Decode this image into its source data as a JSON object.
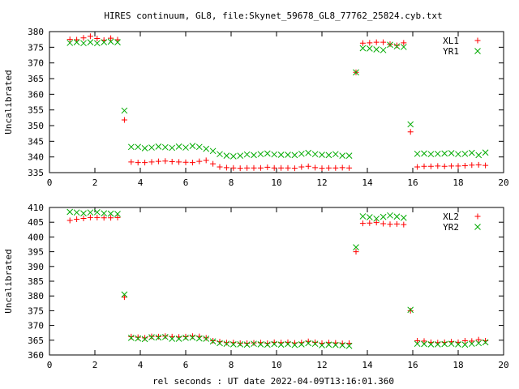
{
  "title": "HIRES continuum, GL8, file:Skynet_59678_GL8_77762_25824.cyb.txt",
  "xlabel": "rel seconds : UT date 2022-04-09T13:16:01.360",
  "colors": {
    "series1": "#ff0000",
    "series2": "#00aa00",
    "axes": "#000000"
  },
  "chart_data": [
    {
      "type": "scatter",
      "title": "HIRES continuum, GL8, file:Skynet_59678_GL8_77762_25824.cyb.txt",
      "xlabel": "",
      "ylabel": "Uncalibrated",
      "xlim": [
        0,
        20
      ],
      "ylim": [
        335,
        380
      ],
      "xticks": [
        "0",
        "2",
        "4",
        "6",
        "8",
        "10",
        "12",
        "14",
        "16",
        "18",
        "20"
      ],
      "yticks": [
        "335",
        "340",
        "345",
        "350",
        "355",
        "360",
        "365",
        "370",
        "375",
        "380"
      ],
      "grid": false,
      "legend": "top-right",
      "series": [
        {
          "name": "XL1",
          "marker": "plus",
          "color": "#ff0000",
          "x": [
            0.9,
            1.2,
            1.5,
            1.8,
            2.1,
            2.4,
            2.7,
            3.0,
            3.3,
            3.6,
            3.9,
            4.2,
            4.5,
            4.8,
            5.1,
            5.4,
            5.7,
            6.0,
            6.3,
            6.6,
            6.9,
            7.2,
            7.5,
            7.8,
            8.1,
            8.4,
            8.7,
            9.0,
            9.3,
            9.6,
            9.9,
            10.2,
            10.5,
            10.8,
            11.1,
            11.4,
            11.7,
            12.0,
            12.3,
            12.6,
            12.9,
            13.2,
            13.5,
            13.8,
            14.1,
            14.4,
            14.7,
            15.0,
            15.3,
            15.6,
            15.9,
            16.2,
            16.5,
            16.8,
            17.1,
            17.4,
            17.7,
            18.0,
            18.3,
            18.6,
            18.9,
            19.2
          ],
          "y": [
            377.5,
            377.4,
            378.0,
            378.5,
            377.8,
            377.3,
            377.9,
            377.4,
            351.8,
            338.4,
            338.2,
            338.2,
            338.4,
            338.6,
            338.7,
            338.5,
            338.4,
            338.3,
            338.2,
            338.6,
            338.9,
            337.8,
            336.8,
            336.6,
            336.5,
            336.4,
            336.5,
            336.5,
            336.5,
            336.7,
            336.5,
            336.5,
            336.5,
            336.4,
            336.8,
            337.0,
            336.6,
            336.4,
            336.5,
            336.5,
            336.6,
            336.5,
            367.0,
            376.3,
            376.4,
            376.6,
            376.6,
            376.0,
            375.6,
            376.4,
            348.0,
            336.8,
            337.0,
            337.0,
            337.1,
            337.0,
            337.1,
            337.1,
            337.2,
            337.4,
            337.5,
            337.3
          ]
        },
        {
          "name": "YR1",
          "marker": "cross",
          "color": "#00aa00",
          "x": [
            0.9,
            1.2,
            1.5,
            1.8,
            2.1,
            2.4,
            2.7,
            3.0,
            3.3,
            3.6,
            3.9,
            4.2,
            4.5,
            4.8,
            5.1,
            5.4,
            5.7,
            6.0,
            6.3,
            6.6,
            6.9,
            7.2,
            7.5,
            7.8,
            8.1,
            8.4,
            8.7,
            9.0,
            9.3,
            9.6,
            9.9,
            10.2,
            10.5,
            10.8,
            11.1,
            11.4,
            11.7,
            12.0,
            12.3,
            12.6,
            12.9,
            13.2,
            13.5,
            13.8,
            14.1,
            14.4,
            14.7,
            15.0,
            15.3,
            15.6,
            15.9,
            16.2,
            16.5,
            16.8,
            17.1,
            17.4,
            17.7,
            18.0,
            18.3,
            18.6,
            18.9,
            19.2
          ],
          "y": [
            376.4,
            376.6,
            376.3,
            376.6,
            376.3,
            376.6,
            376.8,
            376.6,
            354.8,
            343.2,
            343.2,
            342.8,
            343.0,
            343.3,
            343.1,
            342.9,
            343.3,
            343.0,
            343.5,
            343.2,
            342.6,
            341.9,
            340.9,
            340.4,
            340.2,
            340.4,
            340.8,
            340.6,
            340.9,
            341.1,
            340.8,
            340.7,
            340.7,
            340.6,
            341.0,
            341.3,
            340.9,
            340.7,
            340.6,
            340.9,
            340.4,
            340.4,
            367.0,
            374.7,
            374.6,
            374.3,
            374.1,
            375.8,
            375.3,
            375.1,
            350.4,
            341.0,
            341.1,
            340.9,
            341.0,
            341.1,
            341.2,
            340.9,
            341.0,
            341.3,
            340.6,
            341.4
          ]
        }
      ]
    },
    {
      "type": "scatter",
      "title": "",
      "xlabel": "rel seconds : UT date 2022-04-09T13:16:01.360",
      "ylabel": "Uncalibrated",
      "xlim": [
        0,
        20
      ],
      "ylim": [
        360,
        410
      ],
      "xticks": [
        "0",
        "2",
        "4",
        "6",
        "8",
        "10",
        "12",
        "14",
        "16",
        "18",
        "20"
      ],
      "yticks": [
        "360",
        "365",
        "370",
        "375",
        "380",
        "385",
        "390",
        "395",
        "400",
        "405",
        "410"
      ],
      "grid": false,
      "legend": "top-right",
      "series": [
        {
          "name": "XL2",
          "marker": "plus",
          "color": "#ff0000",
          "x": [
            0.9,
            1.2,
            1.5,
            1.8,
            2.1,
            2.4,
            2.7,
            3.0,
            3.3,
            3.6,
            3.9,
            4.2,
            4.5,
            4.8,
            5.1,
            5.4,
            5.7,
            6.0,
            6.3,
            6.6,
            6.9,
            7.2,
            7.5,
            7.8,
            8.1,
            8.4,
            8.7,
            9.0,
            9.3,
            9.6,
            9.9,
            10.2,
            10.5,
            10.8,
            11.1,
            11.4,
            11.7,
            12.0,
            12.3,
            12.6,
            12.9,
            13.2,
            13.5,
            13.8,
            14.1,
            14.4,
            14.7,
            15.0,
            15.3,
            15.6,
            15.9,
            16.2,
            16.5,
            16.8,
            17.1,
            17.4,
            17.7,
            18.0,
            18.3,
            18.6,
            18.9,
            19.2
          ],
          "y": [
            405.6,
            406.0,
            406.3,
            406.6,
            406.6,
            406.5,
            406.5,
            406.6,
            379.6,
            366.2,
            366.0,
            365.8,
            366.3,
            366.2,
            366.4,
            366.2,
            366.1,
            366.2,
            366.4,
            366.3,
            365.8,
            364.8,
            364.5,
            364.2,
            364.2,
            364.0,
            364.0,
            364.1,
            364.2,
            364.0,
            364.3,
            364.2,
            364.3,
            364.1,
            364.2,
            364.6,
            364.3,
            364.0,
            364.2,
            364.1,
            363.9,
            364.0,
            395.0,
            404.6,
            404.7,
            404.9,
            404.5,
            404.3,
            404.4,
            404.2,
            375.0,
            364.8,
            364.7,
            364.3,
            364.2,
            364.3,
            364.5,
            364.3,
            364.8,
            364.7,
            365.2,
            364.8
          ]
        },
        {
          "name": "YR2",
          "marker": "cross",
          "color": "#00aa00",
          "x": [
            0.9,
            1.2,
            1.5,
            1.8,
            2.1,
            2.4,
            2.7,
            3.0,
            3.3,
            3.6,
            3.9,
            4.2,
            4.5,
            4.8,
            5.1,
            5.4,
            5.7,
            6.0,
            6.3,
            6.6,
            6.9,
            7.2,
            7.5,
            7.8,
            8.1,
            8.4,
            8.7,
            9.0,
            9.3,
            9.6,
            9.9,
            10.2,
            10.5,
            10.8,
            11.1,
            11.4,
            11.7,
            12.0,
            12.3,
            12.6,
            12.9,
            13.2,
            13.5,
            13.8,
            14.1,
            14.4,
            14.7,
            15.0,
            15.3,
            15.6,
            15.9,
            16.2,
            16.5,
            16.8,
            17.1,
            17.4,
            17.7,
            18.0,
            18.3,
            18.6,
            18.9,
            19.2
          ],
          "y": [
            408.5,
            408.3,
            408.0,
            408.3,
            408.4,
            408.0,
            407.9,
            407.8,
            380.5,
            365.8,
            365.6,
            365.4,
            366.0,
            365.9,
            366.1,
            365.5,
            365.5,
            365.8,
            365.9,
            365.6,
            365.5,
            364.6,
            364.0,
            363.8,
            363.6,
            363.6,
            363.5,
            363.8,
            363.6,
            363.5,
            363.7,
            363.5,
            363.7,
            363.4,
            363.6,
            364.0,
            363.8,
            363.3,
            363.5,
            363.4,
            363.3,
            363.1,
            396.5,
            407.0,
            406.7,
            406.2,
            406.8,
            407.3,
            406.9,
            406.5,
            375.3,
            363.8,
            363.7,
            363.6,
            363.6,
            363.7,
            363.8,
            363.6,
            363.5,
            363.8,
            364.0,
            364.3
          ]
        }
      ]
    }
  ]
}
